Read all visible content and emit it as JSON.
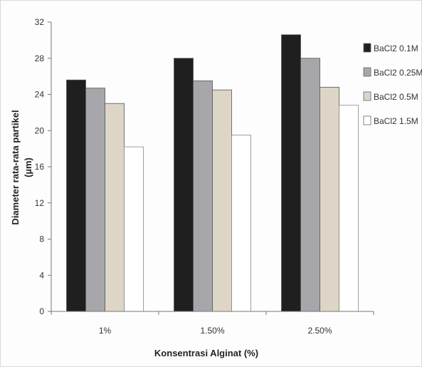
{
  "chart_data": {
    "type": "bar",
    "categories": [
      "1%",
      "1.50%",
      "2.50%"
    ],
    "series": [
      {
        "name": "BaCl2 0.1M",
        "values": [
          25.6,
          28.0,
          30.6
        ],
        "color": "#1f1f1f"
      },
      {
        "name": "BaCl2 0.25M",
        "values": [
          24.7,
          25.5,
          28.0
        ],
        "color": "#a7a7ab"
      },
      {
        "name": "BaCl2 0.5M",
        "values": [
          23.0,
          24.5,
          24.8
        ],
        "color": "#ddd6c6"
      },
      {
        "name": "BaCl2 1.5M",
        "values": [
          18.2,
          19.5,
          22.8
        ],
        "color": "#ffffff"
      }
    ],
    "xlabel": "Konsentrasi Alginat (%)",
    "ylabel_line1": "Diameter rata-rata partikel",
    "ylabel_line2": "(µm)",
    "yticks": [
      0,
      4,
      8,
      12,
      16,
      20,
      24,
      28,
      32
    ],
    "ylim": [
      0,
      32
    ],
    "grid": false,
    "legend_position": "right"
  }
}
